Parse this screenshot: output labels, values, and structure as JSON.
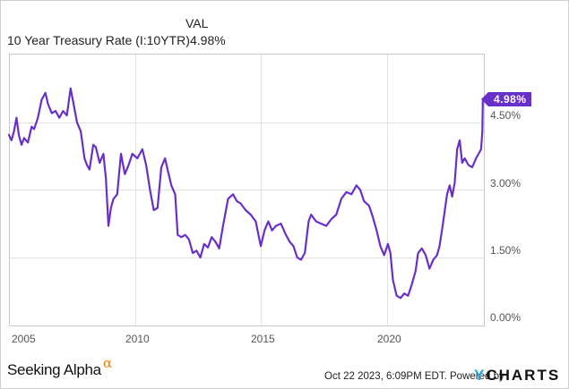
{
  "header": {
    "column_label": "VAL",
    "series_name": "10 Year Treasury Rate (I:10YTR)",
    "series_value": "4.98%"
  },
  "badge": {
    "label": "4.98%",
    "color": "#6930c9"
  },
  "footer": {
    "brand": "Seeking Alpha",
    "brand_symbol": "α",
    "timestamp": "Oct 22 2023, 6:09PM EDT.",
    "powered_by": "Powered by",
    "provider_y": "Y",
    "provider_rest": "CHARTS"
  },
  "axes": {
    "x_ticks": [
      "2005",
      "2010",
      "2015",
      "2020"
    ],
    "y_ticks": [
      "4.50%",
      "3.00%",
      "1.50%",
      "0.00%"
    ]
  },
  "chart_data": {
    "type": "line",
    "title": "10 Year Treasury Rate (I:10YTR)",
    "xlabel": "",
    "ylabel": "",
    "x_ticks": [
      2005,
      2010,
      2015,
      2020
    ],
    "y_ticks": [
      0.0,
      1.5,
      3.0,
      4.5
    ],
    "xlim": [
      2005.0,
      2023.85
    ],
    "ylim": [
      0.0,
      5.95
    ],
    "grid": true,
    "legend_position": "top-left",
    "line_color": "#6930c9",
    "last_value_label": "4.98%",
    "series": [
      {
        "name": "10 Year Treasury Rate",
        "x": [
          2005.0,
          2005.1,
          2005.2,
          2005.3,
          2005.4,
          2005.5,
          2005.6,
          2005.75,
          2005.9,
          2006.0,
          2006.15,
          2006.3,
          2006.45,
          2006.55,
          2006.7,
          2006.85,
          2007.0,
          2007.15,
          2007.3,
          2007.45,
          2007.55,
          2007.7,
          2007.85,
          2008.0,
          2008.1,
          2008.2,
          2008.35,
          2008.45,
          2008.6,
          2008.75,
          2008.85,
          2008.95,
          2009.05,
          2009.15,
          2009.3,
          2009.45,
          2009.6,
          2009.75,
          2009.9,
          2010.1,
          2010.3,
          2010.45,
          2010.6,
          2010.75,
          2010.9,
          2011.05,
          2011.2,
          2011.3,
          2011.45,
          2011.6,
          2011.7,
          2011.85,
          2012.0,
          2012.15,
          2012.3,
          2012.45,
          2012.6,
          2012.75,
          2012.9,
          2013.05,
          2013.2,
          2013.35,
          2013.5,
          2013.7,
          2013.9,
          2014.05,
          2014.2,
          2014.4,
          2014.6,
          2014.8,
          2015.0,
          2015.15,
          2015.3,
          2015.45,
          2015.6,
          2015.8,
          2016.0,
          2016.15,
          2016.3,
          2016.45,
          2016.6,
          2016.75,
          2016.9,
          2017.0,
          2017.2,
          2017.4,
          2017.6,
          2017.8,
          2018.0,
          2018.2,
          2018.4,
          2018.6,
          2018.8,
          2018.95,
          2019.1,
          2019.3,
          2019.45,
          2019.6,
          2019.75,
          2019.9,
          2020.05,
          2020.15,
          2020.25,
          2020.4,
          2020.55,
          2020.7,
          2020.85,
          2021.0,
          2021.15,
          2021.25,
          2021.4,
          2021.55,
          2021.7,
          2021.85,
          2022.0,
          2022.1,
          2022.25,
          2022.4,
          2022.5,
          2022.6,
          2022.7,
          2022.8,
          2022.9,
          2023.0,
          2023.1,
          2023.25,
          2023.4,
          2023.55,
          2023.65,
          2023.75,
          2023.8,
          2023.82
        ],
        "values": [
          4.22,
          4.1,
          4.3,
          4.6,
          4.2,
          4.0,
          4.15,
          4.05,
          4.4,
          4.35,
          4.6,
          5.0,
          5.15,
          4.9,
          4.7,
          4.75,
          4.6,
          4.75,
          4.65,
          5.25,
          4.95,
          4.5,
          4.3,
          3.7,
          3.55,
          3.45,
          4.0,
          3.95,
          3.6,
          3.8,
          3.25,
          2.2,
          2.6,
          2.8,
          2.9,
          3.8,
          3.35,
          3.55,
          3.8,
          3.7,
          3.9,
          3.55,
          3.0,
          2.55,
          2.6,
          3.5,
          3.7,
          3.45,
          3.1,
          2.9,
          2.0,
          1.95,
          2.0,
          1.9,
          1.6,
          1.65,
          1.5,
          1.8,
          1.72,
          1.95,
          1.85,
          1.7,
          2.2,
          2.8,
          2.9,
          2.75,
          2.7,
          2.55,
          2.45,
          2.3,
          1.75,
          2.1,
          2.3,
          2.1,
          2.2,
          2.25,
          2.0,
          1.85,
          1.75,
          1.5,
          1.45,
          1.6,
          2.3,
          2.45,
          2.3,
          2.25,
          2.2,
          2.35,
          2.45,
          2.8,
          2.95,
          2.9,
          3.1,
          3.0,
          2.75,
          2.65,
          2.4,
          2.1,
          1.75,
          1.55,
          1.8,
          1.6,
          1.0,
          0.65,
          0.6,
          0.7,
          0.65,
          0.9,
          1.2,
          1.6,
          1.7,
          1.55,
          1.25,
          1.45,
          1.55,
          1.75,
          2.3,
          2.9,
          3.1,
          2.85,
          3.15,
          3.9,
          4.1,
          3.6,
          3.7,
          3.55,
          3.5,
          3.7,
          3.8,
          3.9,
          4.3,
          4.98
        ]
      }
    ]
  }
}
